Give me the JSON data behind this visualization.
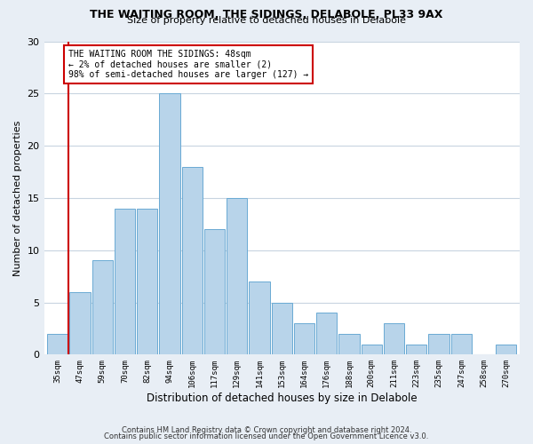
{
  "title1": "THE WAITING ROOM, THE SIDINGS, DELABOLE, PL33 9AX",
  "title2": "Size of property relative to detached houses in Delabole",
  "xlabel": "Distribution of detached houses by size in Delabole",
  "ylabel": "Number of detached properties",
  "categories": [
    "35sqm",
    "47sqm",
    "59sqm",
    "70sqm",
    "82sqm",
    "94sqm",
    "106sqm",
    "117sqm",
    "129sqm",
    "141sqm",
    "153sqm",
    "164sqm",
    "176sqm",
    "188sqm",
    "200sqm",
    "211sqm",
    "223sqm",
    "235sqm",
    "247sqm",
    "258sqm",
    "270sqm"
  ],
  "values": [
    2,
    6,
    9,
    14,
    14,
    25,
    18,
    12,
    15,
    7,
    5,
    3,
    4,
    2,
    1,
    3,
    1,
    2,
    2,
    0,
    1
  ],
  "bar_color": "#b8d4ea",
  "bar_edge_color": "#6aaad4",
  "subject_line_color": "#cc0000",
  "ylim": [
    0,
    30
  ],
  "yticks": [
    0,
    5,
    10,
    15,
    20,
    25,
    30
  ],
  "annotation_lines": [
    "THE WAITING ROOM THE SIDINGS: 48sqm",
    "← 2% of detached houses are smaller (2)",
    "98% of semi-detached houses are larger (127) →"
  ],
  "annotation_box_color": "#cc0000",
  "footer1": "Contains HM Land Registry data © Crown copyright and database right 2024.",
  "footer2": "Contains public sector information licensed under the Open Government Licence v3.0.",
  "bg_color": "#e8eef5",
  "plot_bg_color": "#ffffff",
  "grid_color": "#c8d4e0"
}
